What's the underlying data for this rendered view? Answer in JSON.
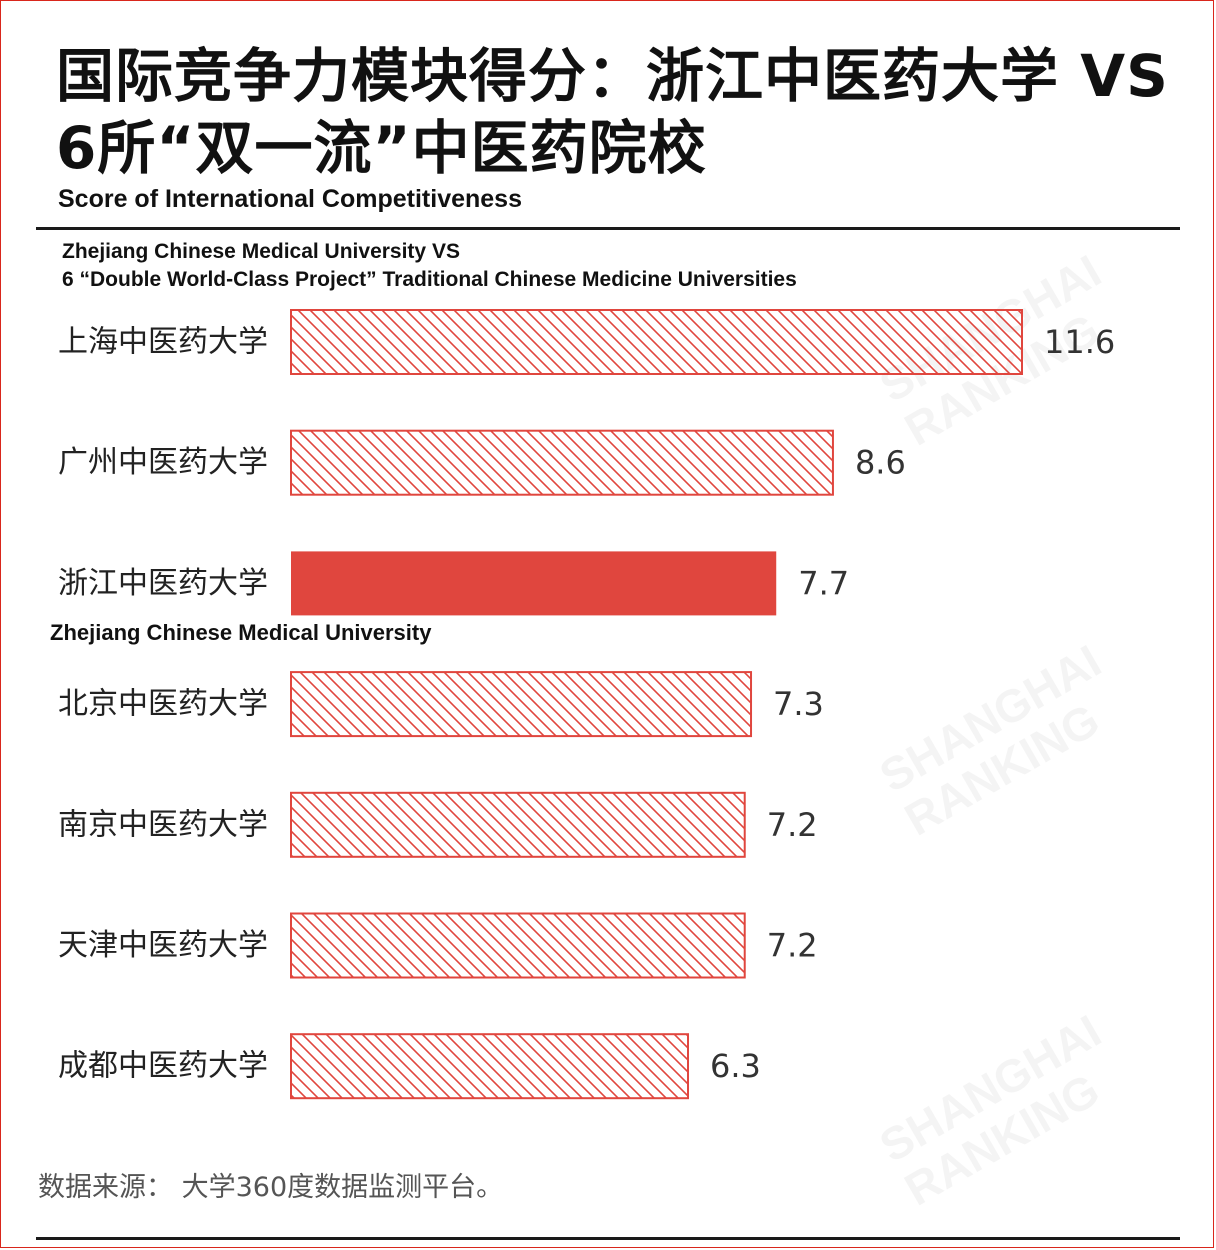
{
  "title": {
    "line1": "国际竞争力模块得分：浙江中医药大学 VS",
    "line2": "6所“双一流”中医药院校"
  },
  "subtitle_en": "Score of International Competitiveness",
  "description": {
    "line1": "Zhejiang Chinese Medical University VS",
    "line2": "6 “Double World-Class Project” Traditional Chinese Medicine Universities"
  },
  "highlight_note": "Zhejiang Chinese Medical University",
  "source": "数据来源：  大学360度数据监测平台。",
  "watermark": {
    "line1": "SHANGHAI",
    "line2": "RANKING"
  },
  "colors": {
    "accent": "#e0463e",
    "hatch": "#e0463e",
    "rule": "#1a1a1a"
  },
  "chart_data": {
    "type": "bar",
    "orientation": "horizontal",
    "title": "国际竞争力模块得分：浙江中医药大学 VS 6所“双一流”中医药院校",
    "categories": [
      "上海中医药大学",
      "广州中医药大学",
      "浙江中医药大学",
      "北京中医药大学",
      "南京中医药大学",
      "天津中医药大学",
      "成都中医药大学"
    ],
    "values": [
      11.6,
      8.6,
      7.7,
      7.3,
      7.2,
      7.2,
      6.3
    ],
    "value_labels": [
      "11.6",
      "8.6",
      "7.7",
      "7.3",
      "7.2",
      "7.2",
      "6.3"
    ],
    "highlight": "浙江中医药大学",
    "xlim": [
      0,
      12.5
    ],
    "grid": false,
    "legend": "none"
  }
}
